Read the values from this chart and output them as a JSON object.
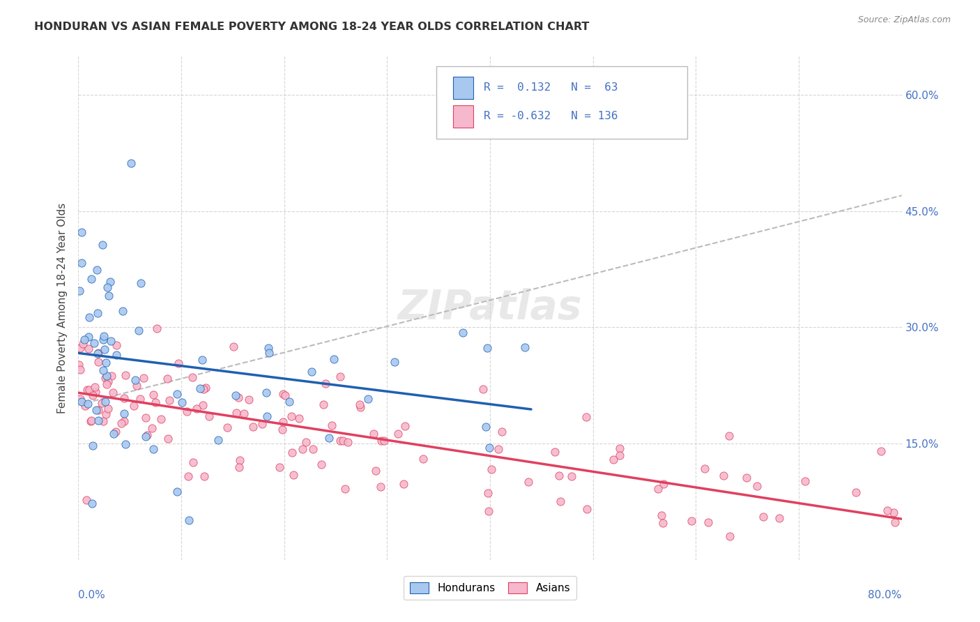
{
  "title": "HONDURAN VS ASIAN FEMALE POVERTY AMONG 18-24 YEAR OLDS CORRELATION CHART",
  "source": "Source: ZipAtlas.com",
  "ylabel": "Female Poverty Among 18-24 Year Olds",
  "xlim": [
    0.0,
    0.8
  ],
  "ylim": [
    0.0,
    0.65
  ],
  "honduran_R": 0.132,
  "honduran_N": 63,
  "asian_R": -0.632,
  "asian_N": 136,
  "honduran_color": "#A8C8F0",
  "asian_color": "#F5B8CC",
  "honduran_line_color": "#2060B0",
  "asian_line_color": "#E04060",
  "watermark": "ZIPatlas",
  "background_color": "#FFFFFF",
  "grid_color": "#CCCCCC",
  "label_color": "#4472C4",
  "title_color": "#333333",
  "source_color": "#888888"
}
